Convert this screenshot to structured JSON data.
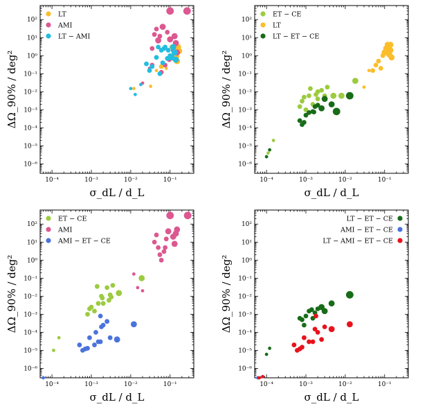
{
  "colors": {
    "LT": "#fbbd2a",
    "AMI": "#dc5890",
    "LT-AMI": "#22bde0",
    "ET-CE": "#9ccb40",
    "LT-ET-CE": "#186c18",
    "AMI-ET-CE": "#4a73dc",
    "LT-AMI-ET-CE": "#e8121c"
  },
  "axes": {
    "xlabel": "σ_dL / d_L",
    "ylabel": "ΔΩ_90% / deg²",
    "xlim": [
      5e-05,
      0.4
    ],
    "ylim": [
      3e-07,
      600
    ],
    "xtick_labels": [
      "10⁻⁴",
      "10⁻³",
      "10⁻²",
      "10⁻¹"
    ],
    "ytick_labels": [
      "10⁻⁶",
      "10⁻⁵",
      "10⁻⁴",
      "10⁻³",
      "10⁻²",
      "10⁻¹",
      "10⁰",
      "10¹",
      "10²"
    ]
  },
  "chart_data": [
    {
      "type": "scatter",
      "panel": "top-left",
      "legend_position": "upper-left",
      "xscale": "log",
      "yscale": "log",
      "series": [
        {
          "name": "LT",
          "color_key": "LT",
          "points": [
            [
              0.012,
              0.015,
              2
            ],
            [
              0.02,
              0.03,
              2
            ],
            [
              0.032,
              0.02,
              2
            ],
            [
              0.045,
              0.15,
              2
            ],
            [
              0.06,
              0.25,
              3
            ],
            [
              0.08,
              0.2,
              2
            ],
            [
              0.1,
              1.0,
              3
            ],
            [
              0.11,
              3,
              3
            ],
            [
              0.12,
              0.7,
              3
            ],
            [
              0.13,
              2,
              3
            ],
            [
              0.14,
              1.2,
              4
            ],
            [
              0.15,
              0.5,
              4
            ],
            [
              0.16,
              3,
              4
            ],
            [
              0.17,
              1.8,
              4
            ],
            [
              0.15,
              0.9,
              3
            ]
          ]
        },
        {
          "name": "AMI",
          "color_key": "AMI",
          "points": [
            [
              0.02,
              0.03,
              2
            ],
            [
              0.03,
              0.2,
              2
            ],
            [
              0.035,
              2.5,
              3
            ],
            [
              0.04,
              15,
              3
            ],
            [
              0.045,
              30,
              3
            ],
            [
              0.05,
              7,
              4
            ],
            [
              0.055,
              12,
              3
            ],
            [
              0.065,
              40,
              4
            ],
            [
              0.075,
              0.3,
              3
            ],
            [
              0.085,
              20,
              3
            ],
            [
              0.095,
              0.6,
              3
            ],
            [
              0.1,
              8,
              4
            ],
            [
              0.12,
              2,
              3
            ],
            [
              0.13,
              12,
              4
            ],
            [
              0.14,
              5,
              4
            ],
            [
              0.15,
              1.5,
              4
            ],
            [
              0.1,
              300,
              5
            ],
            [
              0.27,
              300,
              5
            ],
            [
              0.035,
              0.3,
              3
            ],
            [
              0.06,
              0.12,
              3
            ]
          ]
        },
        {
          "name": "LT − AMI",
          "color_key": "LT-AMI",
          "points": [
            [
              0.01,
              0.015,
              2
            ],
            [
              0.013,
              0.007,
              2
            ],
            [
              0.018,
              0.025,
              2
            ],
            [
              0.025,
              0.35,
              3
            ],
            [
              0.03,
              0.15,
              3
            ],
            [
              0.035,
              0.25,
              3
            ],
            [
              0.045,
              0.8,
              3
            ],
            [
              0.05,
              3,
              3
            ],
            [
              0.055,
              0.1,
              3
            ],
            [
              0.06,
              2,
              3
            ],
            [
              0.065,
              0.4,
              3
            ],
            [
              0.07,
              2.5,
              3
            ],
            [
              0.075,
              3,
              3
            ],
            [
              0.085,
              0.7,
              3
            ],
            [
              0.09,
              2,
              3
            ],
            [
              0.1,
              1,
              3
            ],
            [
              0.11,
              0.8,
              4
            ],
            [
              0.12,
              3,
              4
            ],
            [
              0.13,
              1.5,
              4
            ],
            [
              0.14,
              0.6,
              4
            ]
          ]
        }
      ]
    },
    {
      "type": "scatter",
      "panel": "top-right",
      "legend_position": "upper-left",
      "xscale": "log",
      "yscale": "log",
      "series": [
        {
          "name": "ET − CE",
          "color_key": "ET-CE",
          "points": [
            [
              0.00011,
              4e-06,
              2
            ],
            [
              0.00015,
              2e-05,
              2
            ],
            [
              0.0007,
              0.0015,
              3
            ],
            [
              0.0008,
              0.003,
              3
            ],
            [
              0.0009,
              0.005,
              3
            ],
            [
              0.001,
              0.001,
              3
            ],
            [
              0.0012,
              0.006,
              3
            ],
            [
              0.0013,
              0.015,
              3
            ],
            [
              0.0015,
              0.002,
              3
            ],
            [
              0.0018,
              0.007,
              3
            ],
            [
              0.002,
              0.004,
              3
            ],
            [
              0.0025,
              0.012,
              3
            ],
            [
              0.003,
              0.006,
              3
            ],
            [
              0.0035,
              0.018,
              3
            ],
            [
              0.005,
              0.006,
              4
            ],
            [
              0.008,
              0.006,
              4
            ],
            [
              0.018,
              0.04,
              4
            ],
            [
              0.002,
              0.01,
              3
            ]
          ]
        },
        {
          "name": "LT",
          "color_key": "LT",
          "points": [
            [
              0.03,
              0.018,
              2
            ],
            [
              0.04,
              0.15,
              2
            ],
            [
              0.05,
              0.15,
              3
            ],
            [
              0.06,
              0.3,
              3
            ],
            [
              0.07,
              0.5,
              3
            ],
            [
              0.08,
              0.2,
              3
            ],
            [
              0.09,
              1.0,
              3
            ],
            [
              0.1,
              1.5,
              4
            ],
            [
              0.11,
              2.5,
              4
            ],
            [
              0.12,
              3,
              4
            ],
            [
              0.13,
              1.2,
              4
            ],
            [
              0.14,
              2,
              4
            ],
            [
              0.15,
              0.8,
              4
            ],
            [
              0.12,
              4,
              4
            ],
            [
              0.14,
              4,
              4
            ]
          ]
        },
        {
          "name": "LT − ET − CE",
          "color_key": "LT-ET-CE",
          "points": [
            [
              0.0001,
              2.5e-06,
              2
            ],
            [
              0.00012,
              6e-06,
              2
            ],
            [
              0.0007,
              0.00025,
              3
            ],
            [
              0.0008,
              0.00015,
              3
            ],
            [
              0.0009,
              0.0002,
              3
            ],
            [
              0.001,
              0.0005,
              3
            ],
            [
              0.0012,
              0.0007,
              3
            ],
            [
              0.0015,
              0.0008,
              3
            ],
            [
              0.0017,
              0.0015,
              3
            ],
            [
              0.002,
              0.0018,
              3
            ],
            [
              0.0025,
              0.0012,
              4
            ],
            [
              0.003,
              0.004,
              4
            ],
            [
              0.0045,
              0.002,
              4
            ],
            [
              0.006,
              0.0008,
              5
            ],
            [
              0.013,
              0.006,
              5
            ],
            [
              0.0016,
              0.00075,
              3
            ]
          ]
        }
      ]
    },
    {
      "type": "scatter",
      "panel": "bottom-left",
      "legend_position": "upper-left",
      "xscale": "log",
      "yscale": "log",
      "series": [
        {
          "name": "ET − CE",
          "color_key": "ET-CE",
          "points": [
            [
              0.00011,
              1e-05,
              2
            ],
            [
              0.00015,
              5e-05,
              2
            ],
            [
              0.0008,
              0.001,
              3
            ],
            [
              0.0009,
              0.002,
              3
            ],
            [
              0.001,
              0.0025,
              3
            ],
            [
              0.0012,
              0.0015,
              3
            ],
            [
              0.0014,
              0.035,
              3
            ],
            [
              0.0015,
              0.004,
              3
            ],
            [
              0.0018,
              0.01,
              3
            ],
            [
              0.002,
              0.004,
              3
            ],
            [
              0.0025,
              0.03,
              3
            ],
            [
              0.0028,
              0.006,
              3
            ],
            [
              0.003,
              0.012,
              3
            ],
            [
              0.0032,
              0.009,
              3
            ],
            [
              0.0035,
              0.04,
              3
            ],
            [
              0.005,
              0.015,
              4
            ],
            [
              0.0019,
              0.008,
              3
            ],
            [
              0.019,
              0.1,
              4
            ]
          ]
        },
        {
          "name": "AMI",
          "color_key": "AMI",
          "points": [
            [
              0.012,
              0.17,
              2
            ],
            [
              0.015,
              0.03,
              2
            ],
            [
              0.02,
              0.02,
              2
            ],
            [
              0.04,
              10,
              3
            ],
            [
              0.045,
              25,
              3
            ],
            [
              0.05,
              5,
              3
            ],
            [
              0.06,
              1,
              3
            ],
            [
              0.07,
              3,
              3
            ],
            [
              0.08,
              15,
              3
            ],
            [
              0.09,
              40,
              4
            ],
            [
              0.1,
              300,
              5
            ],
            [
              0.12,
              20,
              4
            ],
            [
              0.13,
              8,
              4
            ],
            [
              0.14,
              30,
              4
            ],
            [
              0.15,
              50,
              4
            ],
            [
              0.28,
              300,
              5
            ],
            [
              0.055,
              2,
              3
            ],
            [
              0.075,
              5,
              3
            ]
          ]
        },
        {
          "name": "AMI − ET − CE",
          "color_key": "AMI-ET-CE",
          "points": [
            [
              6e-05,
              3e-07,
              2
            ],
            [
              7.5e-05,
              2.5e-07,
              2
            ],
            [
              0.0005,
              2e-05,
              3
            ],
            [
              0.0006,
              1e-05,
              3
            ],
            [
              0.0007,
              1.2e-05,
              3
            ],
            [
              0.0008,
              1.3e-05,
              3
            ],
            [
              0.0009,
              5e-05,
              3
            ],
            [
              0.0012,
              2e-05,
              3
            ],
            [
              0.0015,
              3e-05,
              3
            ],
            [
              0.0017,
              3e-05,
              3
            ],
            [
              0.0018,
              0.0002,
              3
            ],
            [
              0.002,
              0.00025,
              3
            ],
            [
              0.0025,
              0.0004,
              3
            ],
            [
              0.003,
              5e-05,
              3
            ],
            [
              0.0045,
              4e-05,
              4
            ],
            [
              0.0013,
              0.0001,
              3
            ],
            [
              0.012,
              0.00028,
              4
            ],
            [
              0.0017,
              0.0008,
              3
            ]
          ]
        }
      ]
    },
    {
      "type": "scatter",
      "panel": "bottom-right",
      "legend_position": "upper-right",
      "xscale": "log",
      "yscale": "log",
      "series": [
        {
          "name": "LT − ET − CE",
          "color_key": "LT-ET-CE",
          "points": [
            [
              0.0001,
              6e-06,
              2
            ],
            [
              0.00012,
              1.3e-05,
              2
            ],
            [
              0.0007,
              0.0006,
              3
            ],
            [
              0.0008,
              0.0005,
              3
            ],
            [
              0.0009,
              0.00025,
              3
            ],
            [
              0.001,
              0.0008,
              3
            ],
            [
              0.0012,
              0.0015,
              3
            ],
            [
              0.0014,
              0.0018,
              3
            ],
            [
              0.0015,
              0.0006,
              3
            ],
            [
              0.0017,
              0.0012,
              3
            ],
            [
              0.002,
              0.002,
              3
            ],
            [
              0.0025,
              0.0025,
              4
            ],
            [
              0.003,
              0.0015,
              4
            ],
            [
              0.0045,
              0.004,
              4
            ],
            [
              0.013,
              0.012,
              5
            ]
          ]
        },
        {
          "name": "AMI − ET − CE",
          "color_key": "AMI-ET-CE",
          "points": [
            [
              6e-05,
              3e-07,
              2
            ],
            [
              7.5e-05,
              2.5e-07,
              2
            ]
          ]
        },
        {
          "name": "LT − AMI − ET − CE",
          "color_key": "LT-AMI-ET-CE",
          "points": [
            [
              6.5e-05,
              3e-07,
              2
            ],
            [
              8e-05,
              3.5e-07,
              2
            ],
            [
              0.0005,
              2e-05,
              3
            ],
            [
              0.0006,
              1e-05,
              3
            ],
            [
              0.0007,
              1.2e-05,
              3
            ],
            [
              0.0008,
              1.5e-05,
              3
            ],
            [
              0.0009,
              5e-05,
              3
            ],
            [
              0.0012,
              3e-05,
              3
            ],
            [
              0.0015,
              3e-05,
              3
            ],
            [
              0.0017,
              0.00015,
              3
            ],
            [
              0.0018,
              0.0008,
              3
            ],
            [
              0.002,
              0.0001,
              3
            ],
            [
              0.0025,
              4e-05,
              3
            ],
            [
              0.003,
              0.0002,
              3
            ],
            [
              0.0045,
              0.00015,
              4
            ],
            [
              0.013,
              0.00028,
              4
            ]
          ]
        }
      ]
    }
  ]
}
